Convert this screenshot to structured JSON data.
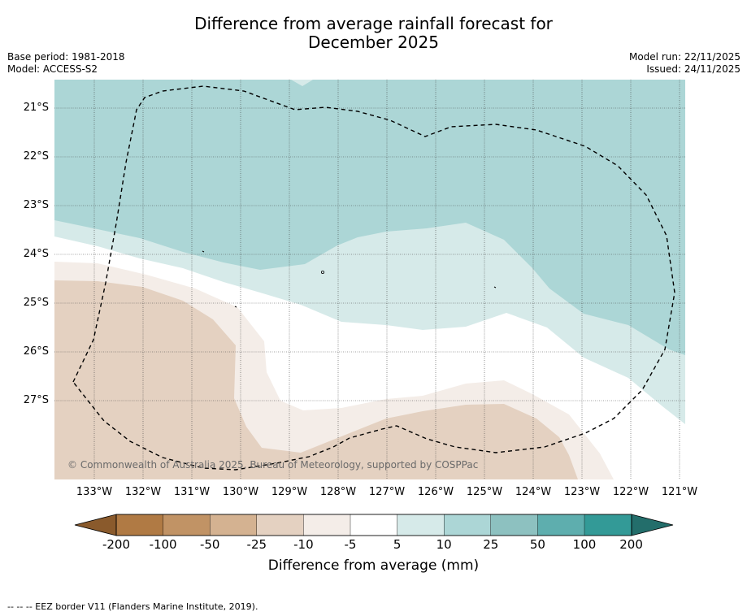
{
  "title": {
    "line1": "Difference from average rainfall forecast for",
    "line2": "December 2025"
  },
  "meta": {
    "base_period": "Base period: 1981-2018",
    "model": "Model: ACCESS-S2",
    "model_run": "Model run: 22/11/2025",
    "issued": "Issued: 24/11/2025"
  },
  "map": {
    "latitude_labels": [
      "21°S",
      "22°S",
      "23°S",
      "24°S",
      "25°S",
      "26°S",
      "27°S"
    ],
    "longitude_labels": [
      "133°W",
      "132°W",
      "131°W",
      "130°W",
      "129°W",
      "128°W",
      "127°W",
      "126°W",
      "125°W",
      "124°W",
      "123°W",
      "122°W",
      "121°W"
    ],
    "credit": "© Commonwealth of Australia 2025, Bureau of Meteorology, supported by COSPPac",
    "colors": {
      "wet_10_25": "#acd6d6",
      "wet_5_10": "#d6eae9",
      "near_avg": "#ffffff",
      "dry_10_5": "#f4ede8",
      "dry_25_10": "#e4d1c1",
      "gridline": "#444444",
      "eez_line": "#000000"
    }
  },
  "colorbar": {
    "ticks": [
      "-200",
      "-100",
      "-50",
      "-25",
      "-10",
      "-5",
      "5",
      "10",
      "25",
      "50",
      "100",
      "200"
    ],
    "colors": [
      "#8a5a2c",
      "#b07a44",
      "#c19365",
      "#d4b291",
      "#e4d1c1",
      "#f4ede8",
      "#ffffff",
      "#d6eae9",
      "#acd6d6",
      "#8dc1c0",
      "#5eaeae",
      "#339a97",
      "#236e6b"
    ],
    "title": "Difference from average (mm)"
  },
  "footnote": "--  --  -- EEZ border V11 (Flanders Marine Institute, 2019)."
}
